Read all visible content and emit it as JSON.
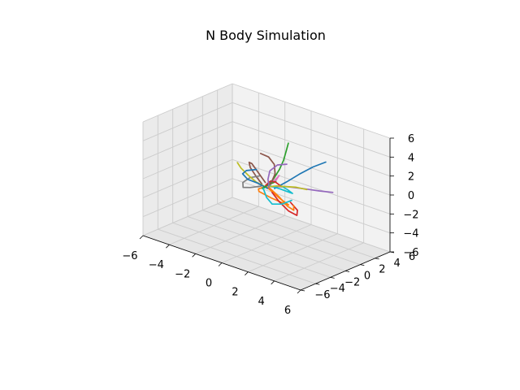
{
  "chart_data": {
    "type": "line3d",
    "title": "N Body Simulation",
    "xlabel": "",
    "ylabel": "",
    "zlabel": "",
    "xlim": [
      -6,
      6
    ],
    "ylim": [
      -6,
      6
    ],
    "zlim": [
      -6,
      6
    ],
    "xticks": [
      -6,
      -4,
      -2,
      0,
      2,
      4,
      6
    ],
    "yticks": [
      -6,
      -4,
      -2,
      0,
      2,
      4,
      6
    ],
    "zticks": [
      -6,
      -4,
      -2,
      0,
      2,
      4,
      6
    ],
    "x_tick_labels": [
      "−6",
      "−4",
      "−2",
      "0",
      "2",
      "4",
      "6"
    ],
    "y_tick_labels": [
      "−6",
      "−4",
      "−2",
      "0",
      "2",
      "4",
      "6"
    ],
    "z_tick_labels": [
      "−6",
      "−4",
      "−2",
      "0",
      "2",
      "4",
      "6"
    ],
    "grid": true,
    "pane_colors": [
      "#f2f2f2",
      "#ebebeb",
      "#e6e6e6"
    ],
    "series": [
      {
        "color": "#1f77b4",
        "points": [
          [
            0.5,
            0.2,
            0.0
          ],
          [
            1.2,
            0.6,
            0.9
          ],
          [
            2.0,
            0.9,
            2.0
          ],
          [
            2.8,
            1.3,
            3.0
          ],
          [
            3.6,
            1.6,
            3.8
          ]
        ]
      },
      {
        "color": "#ff7f0e",
        "points": [
          [
            0.3,
            -0.4,
            0.2
          ],
          [
            1.1,
            -0.2,
            -0.6
          ],
          [
            1.4,
            0.5,
            -1.4
          ],
          [
            0.8,
            1.1,
            -1.8
          ],
          [
            -0.2,
            1.0,
            -1.6
          ],
          [
            -0.8,
            0.4,
            -1.0
          ],
          [
            -0.5,
            -0.2,
            -0.4
          ],
          [
            0.2,
            0.0,
            0.3
          ]
        ]
      },
      {
        "color": "#2ca02c",
        "points": [
          [
            0.1,
            0.0,
            0.1
          ],
          [
            0.4,
            0.3,
            1.0
          ],
          [
            0.7,
            0.5,
            2.0
          ],
          [
            0.9,
            0.7,
            3.0
          ],
          [
            1.0,
            0.9,
            4.0
          ],
          [
            1.1,
            1.0,
            4.8
          ]
        ]
      },
      {
        "color": "#d62728",
        "points": [
          [
            0.6,
            -0.3,
            -0.2
          ],
          [
            1.4,
            -0.8,
            -0.6
          ],
          [
            2.2,
            -0.9,
            -1.2
          ],
          [
            2.6,
            -0.5,
            -1.6
          ],
          [
            2.3,
            0.1,
            -1.4
          ],
          [
            1.6,
            0.4,
            -1.0
          ]
        ]
      },
      {
        "color": "#9467bd",
        "points": [
          [
            0.2,
            0.3,
            0.0
          ],
          [
            1.0,
            0.9,
            0.2
          ],
          [
            2.0,
            1.4,
            0.3
          ],
          [
            3.0,
            1.8,
            0.4
          ],
          [
            3.8,
            2.2,
            0.5
          ]
        ]
      },
      {
        "color": "#8c564b",
        "points": [
          [
            -0.2,
            0.2,
            0.3
          ],
          [
            -1.0,
            0.6,
            0.9
          ],
          [
            -1.8,
            1.2,
            1.2
          ],
          [
            -2.4,
            1.9,
            0.8
          ],
          [
            -2.6,
            2.4,
            0.0
          ],
          [
            -2.2,
            2.5,
            -0.8
          ],
          [
            -1.6,
            2.2,
            -1.2
          ]
        ]
      },
      {
        "color": "#e377c2",
        "points": [
          [
            0.0,
            0.0,
            0.0
          ],
          [
            0.5,
            0.4,
            0.8
          ],
          [
            0.9,
            0.1,
            1.6
          ],
          [
            1.2,
            -0.4,
            1.9
          ],
          [
            1.0,
            -0.7,
            1.4
          ],
          [
            0.6,
            -0.5,
            0.8
          ]
        ]
      },
      {
        "color": "#7f7f7f",
        "points": [
          [
            -0.3,
            -0.2,
            0.0
          ],
          [
            -0.9,
            -0.6,
            -0.3
          ],
          [
            -1.5,
            -0.5,
            -0.6
          ],
          [
            -1.8,
            0.0,
            -0.4
          ],
          [
            -1.6,
            0.6,
            0.0
          ],
          [
            -1.0,
            0.8,
            0.4
          ]
        ]
      },
      {
        "color": "#bcbd22",
        "points": [
          [
            0.1,
            -0.1,
            0.0
          ],
          [
            -0.6,
            -0.3,
            0.3
          ],
          [
            -1.3,
            -0.2,
            0.7
          ],
          [
            -2.0,
            0.1,
            1.0
          ],
          [
            -2.5,
            0.5,
            1.2
          ]
        ]
      },
      {
        "color": "#17becf",
        "points": [
          [
            0.0,
            0.2,
            0.1
          ],
          [
            0.6,
            0.8,
            -0.2
          ],
          [
            1.0,
            1.4,
            -0.6
          ],
          [
            0.9,
            1.9,
            -0.9
          ],
          [
            0.4,
            2.1,
            -0.8
          ],
          [
            -0.1,
            1.8,
            -0.4
          ]
        ]
      },
      {
        "color": "#1f77b4",
        "points": [
          [
            0.2,
            -0.2,
            0.0
          ],
          [
            -0.3,
            -0.7,
            0.5
          ],
          [
            -0.7,
            -1.3,
            0.9
          ],
          [
            -0.8,
            -1.8,
            1.6
          ],
          [
            -0.4,
            -2.0,
            2.2
          ],
          [
            0.2,
            -1.7,
            2.5
          ]
        ]
      },
      {
        "color": "#ff7f0e",
        "points": [
          [
            0.1,
            0.1,
            0.0
          ],
          [
            0.7,
            0.4,
            -0.8
          ],
          [
            1.2,
            0.7,
            -1.7
          ],
          [
            1.4,
            1.2,
            -2.2
          ],
          [
            1.1,
            1.7,
            -2.0
          ]
        ]
      },
      {
        "color": "#2ca02c",
        "points": [
          [
            -0.1,
            0.0,
            0.0
          ],
          [
            -0.6,
            0.5,
            -0.6
          ],
          [
            -0.9,
            1.1,
            -1.0
          ],
          [
            -0.8,
            1.6,
            -0.7
          ],
          [
            -0.3,
            1.8,
            -0.2
          ]
        ]
      },
      {
        "color": "#d62728",
        "points": [
          [
            0.0,
            -0.1,
            0.2
          ],
          [
            0.5,
            -0.6,
            0.9
          ],
          [
            1.0,
            -1.2,
            1.5
          ],
          [
            1.6,
            -1.6,
            1.8
          ],
          [
            2.1,
            -1.7,
            1.6
          ]
        ]
      },
      {
        "color": "#8c564b",
        "points": [
          [
            0.3,
            0.0,
            0.4
          ],
          [
            0.2,
            0.8,
            1.2
          ],
          [
            -0.2,
            1.4,
            1.8
          ],
          [
            -0.8,
            1.7,
            2.2
          ],
          [
            -1.3,
            1.5,
            2.4
          ]
        ]
      },
      {
        "color": "#17becf",
        "points": [
          [
            -0.2,
            -0.1,
            -0.2
          ],
          [
            0.4,
            -0.7,
            -0.7
          ],
          [
            1.0,
            -1.0,
            -1.0
          ],
          [
            1.7,
            -0.9,
            -0.7
          ],
          [
            2.2,
            -0.5,
            -0.2
          ]
        ]
      },
      {
        "color": "#9467bd",
        "points": [
          [
            0.1,
            0.2,
            -0.1
          ],
          [
            -0.4,
            0.9,
            0.3
          ],
          [
            -0.6,
            1.5,
            0.9
          ],
          [
            -0.3,
            2.0,
            1.5
          ],
          [
            0.3,
            2.2,
            1.8
          ]
        ]
      },
      {
        "color": "#bcbd22",
        "points": [
          [
            0.2,
            0.1,
            0.1
          ],
          [
            0.9,
            -0.2,
            0.6
          ],
          [
            1.6,
            -0.3,
            0.9
          ],
          [
            2.3,
            -0.1,
            1.1
          ],
          [
            2.9,
            0.3,
            1.0
          ]
        ]
      }
    ]
  }
}
